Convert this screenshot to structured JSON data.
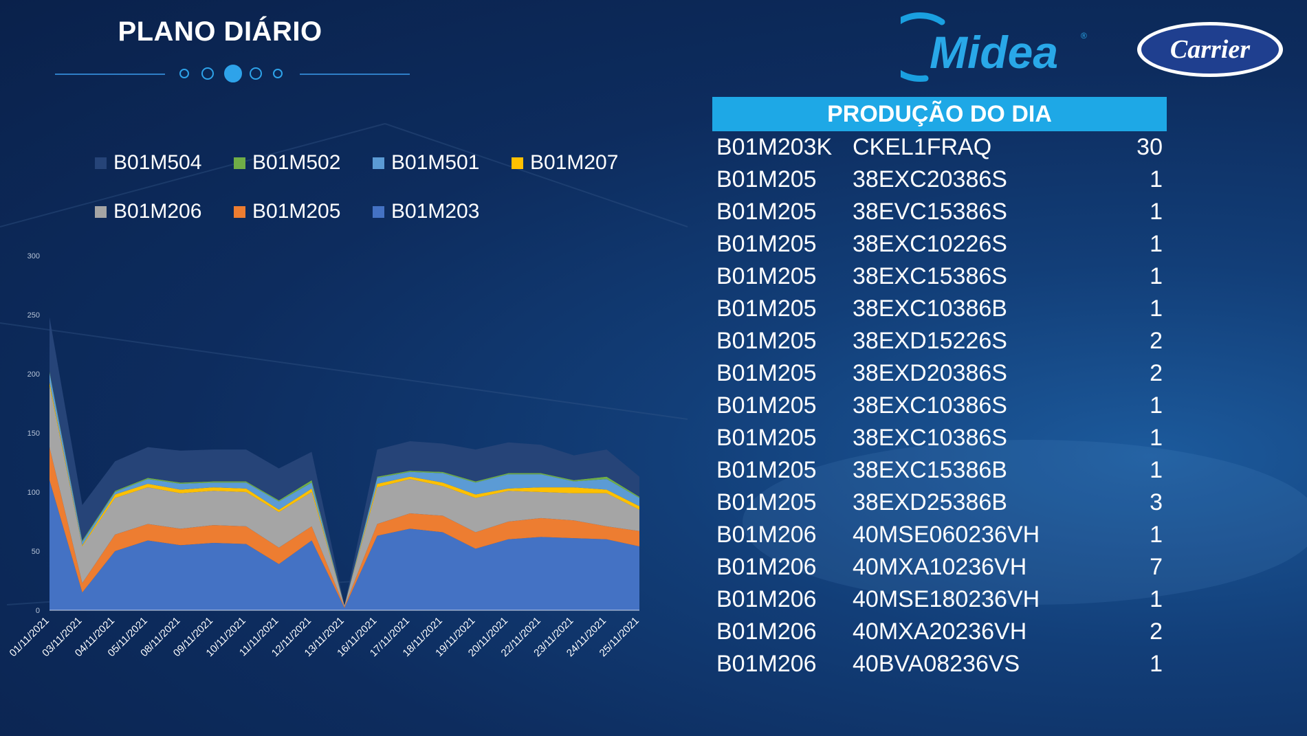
{
  "header": {
    "title": "PLANO DIÁRIO"
  },
  "brands": {
    "midea": "Midea",
    "carrier": "Carrier"
  },
  "colors": {
    "background": "#0d2c5e",
    "header_bar": "#1ea8e6",
    "dots": "#2ea3ea"
  },
  "pager": {
    "count": 5,
    "active": 3
  },
  "production": {
    "title": "PRODUÇÃO DO DIA",
    "rows": [
      {
        "code": "B01M203K",
        "model": "CKEL1FRAQ",
        "qty": "30"
      },
      {
        "code": "B01M205",
        "model": "38EXC20386S",
        "qty": "1"
      },
      {
        "code": "B01M205",
        "model": "38EVC15386S",
        "qty": "1"
      },
      {
        "code": "B01M205",
        "model": "38EXC10226S",
        "qty": "1"
      },
      {
        "code": "B01M205",
        "model": "38EXC15386S",
        "qty": "1"
      },
      {
        "code": "B01M205",
        "model": "38EXC10386B",
        "qty": "1"
      },
      {
        "code": "B01M205",
        "model": "38EXD15226S",
        "qty": "2"
      },
      {
        "code": "B01M205",
        "model": "38EXD20386S",
        "qty": "2"
      },
      {
        "code": "B01M205",
        "model": "38EXC10386S",
        "qty": "1"
      },
      {
        "code": "B01M205",
        "model": "38EXC10386S",
        "qty": "1"
      },
      {
        "code": "B01M205",
        "model": "38EXC15386B",
        "qty": "1"
      },
      {
        "code": "B01M205",
        "model": "38EXD25386B",
        "qty": "3"
      },
      {
        "code": "B01M206",
        "model": "40MSE060236VH",
        "qty": "1"
      },
      {
        "code": "B01M206",
        "model": "40MXA10236VH",
        "qty": "7"
      },
      {
        "code": "B01M206",
        "model": "40MSE180236VH",
        "qty": "1"
      },
      {
        "code": "B01M206",
        "model": "40MXA20236VH",
        "qty": "2"
      },
      {
        "code": "B01M206",
        "model": "40BVA08236VS",
        "qty": "1"
      }
    ]
  },
  "chart_data": {
    "type": "area",
    "stacked": true,
    "title": "",
    "xlabel": "",
    "ylabel": "",
    "ylim": [
      0,
      300
    ],
    "yticks": [
      0,
      50,
      100,
      150,
      200,
      250,
      300
    ],
    "grid": false,
    "legend_position": "top",
    "categories": [
      "01/11/2021",
      "03/11/2021",
      "04/11/2021",
      "05/11/2021",
      "08/11/2021",
      "09/11/2021",
      "10/11/2021",
      "11/11/2021",
      "12/11/2021",
      "13/11/2021",
      "16/11/2021",
      "17/11/2021",
      "18/11/2021",
      "19/11/2021",
      "20/11/2021",
      "22/11/2021",
      "23/11/2021",
      "24/11/2021",
      "25/11/2021"
    ],
    "series": [
      {
        "name": "B01M203",
        "color": "#4472c4",
        "values": [
          110,
          15,
          50,
          59,
          55,
          57,
          56,
          39,
          59,
          2,
          63,
          69,
          66,
          52,
          60,
          62,
          61,
          60,
          54
        ]
      },
      {
        "name": "B01M205",
        "color": "#ed7d31",
        "values": [
          28,
          8,
          14,
          14,
          14,
          15,
          15,
          14,
          12,
          1,
          10,
          13,
          14,
          14,
          15,
          16,
          15,
          11,
          13
        ]
      },
      {
        "name": "B01M206",
        "color": "#a5a5a5",
        "values": [
          52,
          31,
          31,
          31,
          30,
          29,
          29,
          30,
          29,
          1,
          31,
          29,
          25,
          29,
          26,
          22,
          23,
          28,
          18
        ]
      },
      {
        "name": "B01M207",
        "color": "#ffc000",
        "values": [
          3,
          1,
          3,
          3,
          3,
          3,
          3,
          2,
          3,
          0,
          3,
          2,
          3,
          3,
          2,
          4,
          5,
          3,
          3
        ]
      },
      {
        "name": "B01M501",
        "color": "#5b9bd5",
        "values": [
          8,
          3,
          2,
          4,
          5,
          4,
          5,
          7,
          5,
          0,
          5,
          4,
          8,
          10,
          12,
          11,
          5,
          9,
          7
        ]
      },
      {
        "name": "B01M502",
        "color": "#70ad47",
        "values": [
          1,
          1,
          1,
          1,
          1,
          1,
          1,
          1,
          2,
          0,
          1,
          1,
          1,
          1,
          1,
          1,
          1,
          2,
          1
        ]
      },
      {
        "name": "B01M504",
        "color": "#264478",
        "values": [
          46,
          30,
          25,
          26,
          27,
          27,
          27,
          27,
          24,
          0,
          23,
          25,
          24,
          27,
          26,
          24,
          21,
          23,
          17
        ]
      }
    ],
    "legend_order": [
      "B01M504",
      "B01M502",
      "B01M501",
      "B01M207",
      "B01M206",
      "B01M205",
      "B01M203"
    ]
  }
}
